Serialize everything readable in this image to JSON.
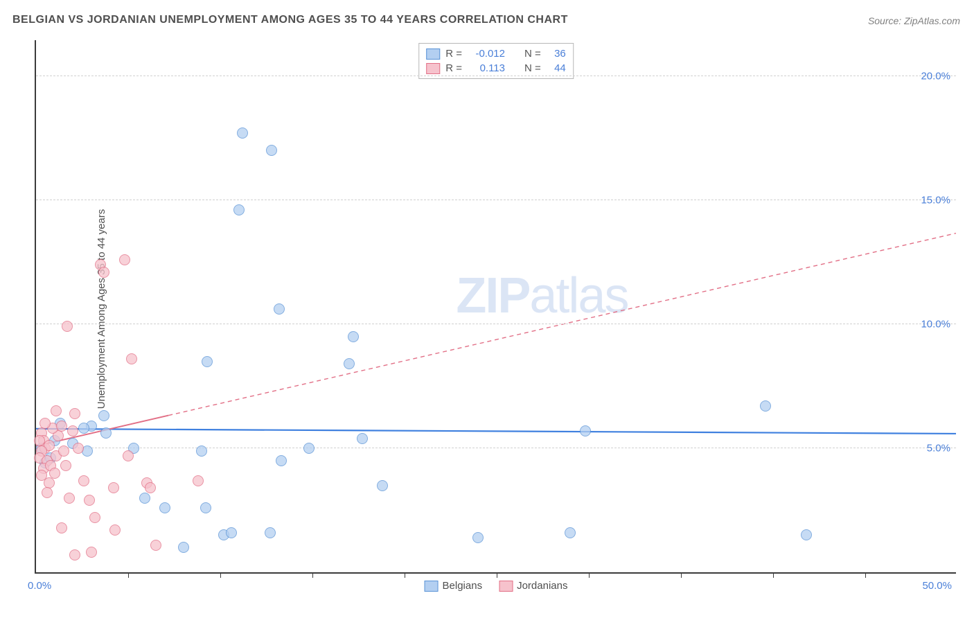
{
  "title": "BELGIAN VS JORDANIAN UNEMPLOYMENT AMONG AGES 35 TO 44 YEARS CORRELATION CHART",
  "source": "Source: ZipAtlas.com",
  "ylabel": "Unemployment Among Ages 35 to 44 years",
  "watermark_parts": {
    "zip": "ZIP",
    "atlas": "atlas"
  },
  "chart": {
    "type": "scatter",
    "xlim": [
      0,
      50
    ],
    "ylim": [
      0,
      21.5
    ],
    "x_tick_step": 5,
    "x_label_min": "0.0%",
    "x_label_max": "50.0%",
    "y_gridlines": [
      {
        "value": 5,
        "label": "5.0%"
      },
      {
        "value": 10,
        "label": "10.0%"
      },
      {
        "value": 15,
        "label": "15.0%"
      },
      {
        "value": 20,
        "label": "20.0%"
      }
    ],
    "background_color": "#ffffff",
    "grid_color": "#d0d0d0",
    "axis_color": "#3b3b3b",
    "tick_label_color": "#4a7fd8",
    "marker_radius": 8,
    "marker_stroke_width": 1
  },
  "series": [
    {
      "name": "Belgians",
      "label": "Belgians",
      "fill_color": "#b3cff1",
      "stroke_color": "#5a93d6",
      "fill_opacity": 0.75,
      "r_value": "-0.012",
      "n_value": "36",
      "trend": {
        "x1": 0,
        "y1": 5.8,
        "x2": 50,
        "y2": 5.6,
        "solid_end_x": 50,
        "color": "#3f80df",
        "width": 2.2,
        "dash": "none"
      },
      "points": [
        [
          11.2,
          17.7
        ],
        [
          12.8,
          17.0
        ],
        [
          11.0,
          14.6
        ],
        [
          13.2,
          10.6
        ],
        [
          9.3,
          8.5
        ],
        [
          17.2,
          9.5
        ],
        [
          17.0,
          8.4
        ],
        [
          3.7,
          6.3
        ],
        [
          1.3,
          6.0
        ],
        [
          1.0,
          5.3
        ],
        [
          0.3,
          5.0
        ],
        [
          0.5,
          4.4
        ],
        [
          3.0,
          5.9
        ],
        [
          5.3,
          5.0
        ],
        [
          3.8,
          5.6
        ],
        [
          17.7,
          5.4
        ],
        [
          29.8,
          5.7
        ],
        [
          39.6,
          6.7
        ],
        [
          5.9,
          3.0
        ],
        [
          7.0,
          2.6
        ],
        [
          9.2,
          2.6
        ],
        [
          8.0,
          1.0
        ],
        [
          10.2,
          1.5
        ],
        [
          10.6,
          1.6
        ],
        [
          13.3,
          4.5
        ],
        [
          12.7,
          1.6
        ],
        [
          18.8,
          3.5
        ],
        [
          24.0,
          1.4
        ],
        [
          29.0,
          1.6
        ],
        [
          41.8,
          1.5
        ],
        [
          0.8,
          4.6
        ],
        [
          2.0,
          5.2
        ],
        [
          2.6,
          5.8
        ],
        [
          2.8,
          4.9
        ],
        [
          14.8,
          5.0
        ],
        [
          9.0,
          4.9
        ]
      ]
    },
    {
      "name": "Jordanians",
      "label": "Jordanians",
      "fill_color": "#f6c2cc",
      "stroke_color": "#e26f86",
      "fill_opacity": 0.75,
      "r_value": "0.113",
      "n_value": "44",
      "trend": {
        "x1": 0,
        "y1": 5.1,
        "x2": 50,
        "y2": 13.7,
        "solid_end_x": 7.2,
        "color": "#e26f86",
        "width": 2,
        "dash": "6 5"
      },
      "points": [
        [
          3.5,
          12.4
        ],
        [
          3.7,
          12.1
        ],
        [
          4.8,
          12.6
        ],
        [
          1.7,
          9.9
        ],
        [
          5.2,
          8.6
        ],
        [
          1.1,
          6.5
        ],
        [
          2.1,
          6.4
        ],
        [
          0.3,
          5.6
        ],
        [
          0.4,
          5.3
        ],
        [
          0.5,
          5.0
        ],
        [
          0.7,
          5.1
        ],
        [
          1.2,
          5.5
        ],
        [
          0.3,
          4.9
        ],
        [
          0.2,
          4.6
        ],
        [
          0.6,
          4.5
        ],
        [
          0.4,
          4.2
        ],
        [
          0.8,
          4.3
        ],
        [
          0.3,
          3.9
        ],
        [
          0.7,
          3.6
        ],
        [
          1.1,
          4.7
        ],
        [
          1.5,
          4.9
        ],
        [
          1.6,
          4.3
        ],
        [
          2.3,
          5.0
        ],
        [
          2.6,
          3.7
        ],
        [
          1.8,
          3.0
        ],
        [
          2.9,
          2.9
        ],
        [
          3.2,
          2.2
        ],
        [
          1.4,
          1.8
        ],
        [
          4.3,
          1.7
        ],
        [
          4.2,
          3.4
        ],
        [
          3.0,
          0.8
        ],
        [
          6.0,
          3.6
        ],
        [
          6.5,
          1.1
        ],
        [
          6.2,
          3.4
        ],
        [
          8.8,
          3.7
        ],
        [
          2.1,
          0.7
        ],
        [
          2.0,
          5.7
        ],
        [
          0.9,
          5.8
        ],
        [
          0.5,
          6.0
        ],
        [
          1.4,
          5.9
        ],
        [
          0.2,
          5.3
        ],
        [
          1.0,
          4.0
        ],
        [
          5.0,
          4.7
        ],
        [
          0.6,
          3.2
        ]
      ]
    }
  ],
  "legend_top": {
    "r_label": "R  =",
    "n_label": "N  ="
  },
  "legend_bottom": {
    "items": [
      "Belgians",
      "Jordanians"
    ]
  }
}
